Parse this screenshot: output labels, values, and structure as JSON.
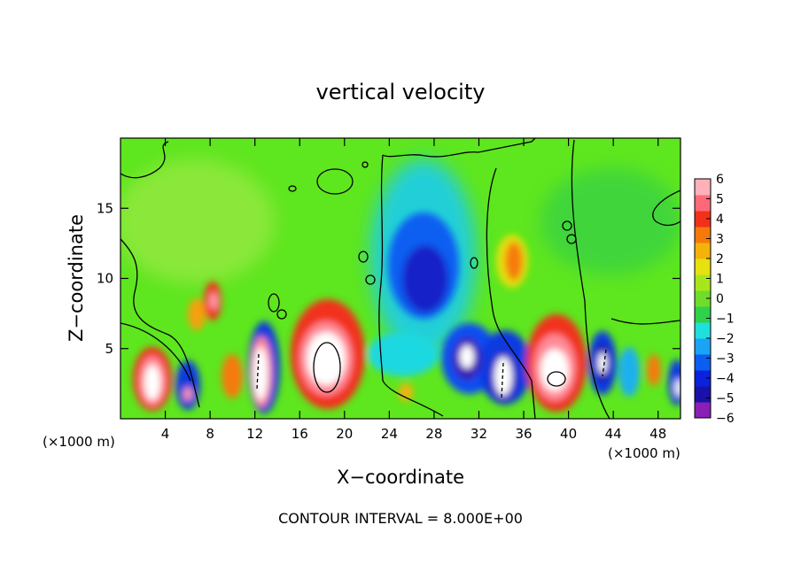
{
  "chart_data": {
    "type": "heatmap",
    "title": "vertical velocity",
    "xlabel": "X−coordinate",
    "ylabel": "Z−coordinate",
    "x_unit_left": "(×1000 m)",
    "x_unit_right": "(×1000 m)",
    "footer": "CONTOUR INTERVAL = 8.000E+00",
    "xlim": [
      0,
      50
    ],
    "ylim": [
      0,
      20
    ],
    "x_ticks": [
      4,
      8,
      12,
      16,
      20,
      24,
      28,
      32,
      36,
      40,
      44,
      48
    ],
    "y_ticks": [
      5,
      10,
      15
    ],
    "colorbar": {
      "min": -6,
      "max": 6,
      "ticks": [
        6,
        5,
        4,
        3,
        2,
        1,
        0,
        "−1",
        "−2",
        "−3",
        "−4",
        "−5",
        "−6"
      ],
      "colors": [
        "#8a1fb5",
        "#1a12a8",
        "#0a22dc",
        "#0a5ef2",
        "#1aa4f5",
        "#1fe0dc",
        "#2fd24a",
        "#6fdd2a",
        "#a8e61c",
        "#e6e10f",
        "#f5b20a",
        "#f57a0a",
        "#f2311a",
        "#ff6878",
        "#ffb0b8"
      ]
    },
    "features": [
      {
        "type": "updraft",
        "x": 3,
        "z": 2.8,
        "peak": 6
      },
      {
        "type": "downdraft",
        "x": 6,
        "z": 2.2,
        "peak": -5
      },
      {
        "type": "updraft",
        "x": 8.2,
        "z": 8.2,
        "peak": 5
      },
      {
        "type": "updraft",
        "x": 10,
        "z": 3,
        "peak": 3
      },
      {
        "type": "updraft",
        "x": 12.5,
        "z": 3.5,
        "peak": 6
      },
      {
        "type": "downdraft",
        "x": 13.5,
        "z": 4.5,
        "peak": -5
      },
      {
        "type": "updraft",
        "x": 18.5,
        "z": 4.2,
        "peak": 6
      },
      {
        "type": "updraft",
        "x": 20.5,
        "z": 6.5,
        "peak": 5
      },
      {
        "type": "downdraft",
        "x": 27.5,
        "z": 10.5,
        "peak": -4
      },
      {
        "type": "downdraft",
        "x": 29.5,
        "z": 5.5,
        "peak": -4
      },
      {
        "type": "downdraft",
        "x": 31,
        "z": 3.2,
        "peak": -6
      },
      {
        "type": "downdraft",
        "x": 34,
        "z": 3,
        "peak": -6
      },
      {
        "type": "updraft",
        "x": 35,
        "z": 11.2,
        "peak": 3
      },
      {
        "type": "updraft",
        "x": 38.5,
        "z": 3.8,
        "peak": 6
      },
      {
        "type": "downdraft",
        "x": 43,
        "z": 4,
        "peak": -6
      },
      {
        "type": "updraft",
        "x": 47,
        "z": 3.2,
        "peak": 3
      },
      {
        "type": "downdraft",
        "x": 49.5,
        "z": 2,
        "peak": -5
      }
    ]
  }
}
